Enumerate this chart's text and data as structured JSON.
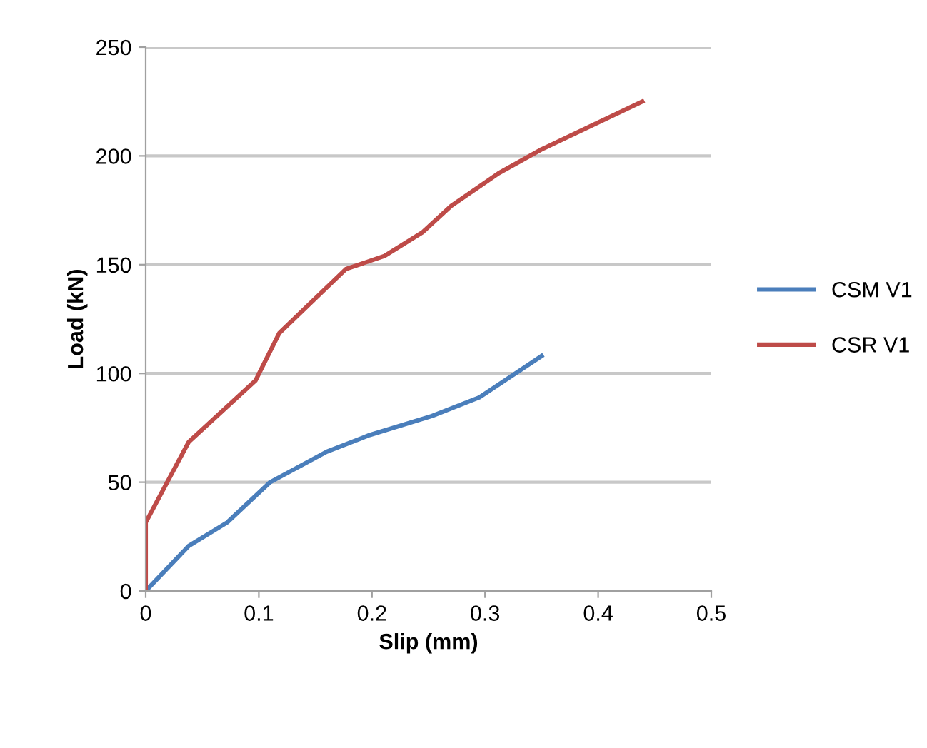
{
  "chart_data": {
    "type": "line",
    "xlabel": "Slip (mm)",
    "ylabel": "Load (kN)",
    "xlim": [
      0,
      0.5
    ],
    "xticks": [
      0,
      0.1,
      0.2,
      0.3,
      0.4,
      0.5
    ],
    "ylim": [
      0,
      250
    ],
    "yticks": [
      0,
      50,
      100,
      150,
      200,
      250
    ],
    "grid": "y",
    "legend": "right",
    "marker": "none",
    "series": [
      {
        "name": "CSM V1",
        "color": "#4a7ebb",
        "x": [
          0,
          0.038,
          0.072,
          0.11,
          0.16,
          0.198,
          0.253,
          0.295,
          0.35
        ],
        "values": [
          0,
          20.7,
          31.5,
          50,
          64,
          71.7,
          80.4,
          89,
          108
        ]
      },
      {
        "name": "CSR V1",
        "color": "#be4b48",
        "x": [
          0,
          0,
          0.038,
          0.097,
          0.118,
          0.177,
          0.211,
          0.245,
          0.27,
          0.312,
          0.35,
          0.439
        ],
        "values": [
          0,
          31.5,
          68.5,
          96.7,
          118.5,
          148,
          154,
          165,
          177,
          192,
          203,
          225
        ]
      }
    ]
  }
}
